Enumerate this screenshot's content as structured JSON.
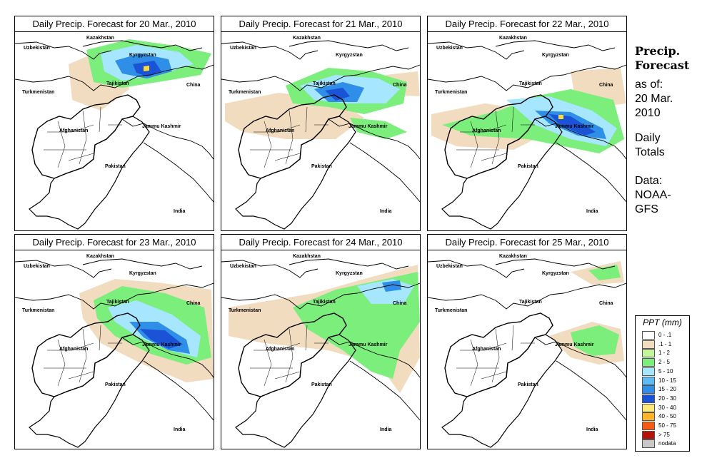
{
  "panels": [
    {
      "title": "Daily Precip. Forecast for  20 Mar., 2010",
      "precip": [
        {
          "c": "#f1dcc0",
          "pts": [
            [
              75,
              45
            ],
            [
              110,
              30
            ],
            [
              150,
              40
            ],
            [
              160,
              80
            ],
            [
              120,
              110
            ],
            [
              80,
              95
            ]
          ]
        },
        {
          "c": "#7bee7b",
          "pts": [
            [
              100,
              25
            ],
            [
              160,
              10
            ],
            [
              230,
              20
            ],
            [
              275,
              30
            ],
            [
              260,
              60
            ],
            [
              200,
              70
            ],
            [
              150,
              78
            ],
            [
              110,
              70
            ]
          ]
        },
        {
          "c": "#a6e7ff",
          "pts": [
            [
              120,
              30
            ],
            [
              170,
              18
            ],
            [
              230,
              28
            ],
            [
              250,
              45
            ],
            [
              200,
              60
            ],
            [
              150,
              68
            ],
            [
              125,
              55
            ]
          ]
        },
        {
          "c": "#2f8fe8",
          "pts": [
            [
              140,
              40
            ],
            [
              175,
              30
            ],
            [
              215,
              38
            ],
            [
              220,
              55
            ],
            [
              185,
              65
            ],
            [
              150,
              58
            ]
          ]
        },
        {
          "c": "#1a53d6",
          "pts": [
            [
              165,
              45
            ],
            [
              195,
              40
            ],
            [
              205,
              55
            ],
            [
              185,
              62
            ],
            [
              170,
              57
            ]
          ]
        },
        {
          "c": "#ffd93a",
          "pts": [
            [
              180,
              48
            ],
            [
              188,
              47
            ],
            [
              188,
              54
            ],
            [
              180,
              55
            ]
          ]
        }
      ]
    },
    {
      "title": "Daily Precip. Forecast for  21 Mar., 2010",
      "precip": [
        {
          "c": "#f1dcc0",
          "pts": [
            [
              5,
              100
            ],
            [
              80,
              85
            ],
            [
              160,
              95
            ],
            [
              200,
              120
            ],
            [
              160,
              150
            ],
            [
              90,
              150
            ],
            [
              30,
              140
            ],
            [
              5,
              125
            ]
          ]
        },
        {
          "c": "#f1dcc0",
          "pts": [
            [
              230,
              60
            ],
            [
              275,
              55
            ],
            [
              278,
              90
            ],
            [
              240,
              88
            ]
          ]
        },
        {
          "c": "#7bee7b",
          "pts": [
            [
              90,
              75
            ],
            [
              150,
              50
            ],
            [
              210,
              55
            ],
            [
              260,
              70
            ],
            [
              255,
              100
            ],
            [
              200,
              115
            ],
            [
              150,
              105
            ],
            [
              100,
              100
            ]
          ]
        },
        {
          "c": "#a6e7ff",
          "pts": [
            [
              110,
              75
            ],
            [
              160,
              60
            ],
            [
              220,
              65
            ],
            [
              250,
              80
            ],
            [
              230,
              100
            ],
            [
              175,
              100
            ],
            [
              130,
              95
            ]
          ]
        },
        {
          "c": "#2f8fe8",
          "pts": [
            [
              130,
              80
            ],
            [
              170,
              70
            ],
            [
              200,
              78
            ],
            [
              190,
              98
            ],
            [
              150,
              98
            ]
          ]
        },
        {
          "c": "#1a53d6",
          "pts": [
            [
              145,
              82
            ],
            [
              170,
              78
            ],
            [
              180,
              90
            ],
            [
              160,
              96
            ]
          ]
        },
        {
          "c": "#7bee7b",
          "pts": [
            [
              180,
              120
            ],
            [
              230,
              125
            ],
            [
              260,
              140
            ],
            [
              230,
              150
            ],
            [
              190,
              140
            ]
          ]
        }
      ]
    },
    {
      "title": "Daily Precip. Forecast for  22 Mar., 2010",
      "precip": [
        {
          "c": "#f1dcc0",
          "pts": [
            [
              5,
              115
            ],
            [
              80,
              100
            ],
            [
              150,
              110
            ],
            [
              170,
              140
            ],
            [
              120,
              165
            ],
            [
              40,
              160
            ],
            [
              5,
              145
            ]
          ]
        },
        {
          "c": "#f1dcc0",
          "pts": [
            [
              200,
              55
            ],
            [
              270,
              50
            ],
            [
              278,
              100
            ],
            [
              240,
              105
            ],
            [
              205,
              85
            ]
          ]
        },
        {
          "c": "#7bee7b",
          "pts": [
            [
              20,
              130
            ],
            [
              100,
              110
            ],
            [
              150,
              90
            ],
            [
              200,
              80
            ],
            [
              260,
              95
            ],
            [
              275,
              150
            ],
            [
              240,
              170
            ],
            [
              190,
              160
            ],
            [
              140,
              150
            ],
            [
              60,
              145
            ]
          ]
        },
        {
          "c": "#a6e7ff",
          "pts": [
            [
              110,
              95
            ],
            [
              170,
              90
            ],
            [
              230,
              110
            ],
            [
              265,
              135
            ],
            [
              250,
              160
            ],
            [
              200,
              150
            ],
            [
              150,
              130
            ]
          ]
        },
        {
          "c": "#2f8fe8",
          "pts": [
            [
              150,
              110
            ],
            [
              200,
              112
            ],
            [
              245,
              135
            ],
            [
              250,
              150
            ],
            [
              210,
              145
            ],
            [
              170,
              128
            ]
          ]
        },
        {
          "c": "#1a53d6",
          "pts": [
            [
              170,
              115
            ],
            [
              200,
              118
            ],
            [
              235,
              140
            ],
            [
              220,
              145
            ],
            [
              185,
              130
            ]
          ]
        },
        {
          "c": "#ffd93a",
          "pts": [
            [
              183,
              116
            ],
            [
              190,
              116
            ],
            [
              190,
              122
            ],
            [
              183,
              122
            ]
          ]
        }
      ]
    },
    {
      "title": "Daily Precip. Forecast for  23 Mar., 2010",
      "precip": [
        {
          "c": "#f1dcc0",
          "pts": [
            [
              90,
              60
            ],
            [
              140,
              40
            ],
            [
              200,
              45
            ],
            [
              275,
              55
            ],
            [
              278,
              180
            ],
            [
              240,
              185
            ],
            [
              180,
              160
            ],
            [
              120,
              130
            ],
            [
              95,
              95
            ]
          ]
        },
        {
          "c": "#7bee7b",
          "pts": [
            [
              110,
              70
            ],
            [
              150,
              50
            ],
            [
              210,
              60
            ],
            [
              265,
              80
            ],
            [
              275,
              150
            ],
            [
              240,
              160
            ],
            [
              190,
              145
            ],
            [
              140,
              120
            ],
            [
              115,
              95
            ]
          ]
        },
        {
          "c": "#a6e7ff",
          "pts": [
            [
              130,
              80
            ],
            [
              170,
              70
            ],
            [
              220,
              90
            ],
            [
              260,
              120
            ],
            [
              255,
              150
            ],
            [
              215,
              140
            ],
            [
              170,
              120
            ],
            [
              140,
              100
            ]
          ]
        },
        {
          "c": "#2f8fe8",
          "pts": [
            [
              160,
              100
            ],
            [
              200,
              100
            ],
            [
              240,
              125
            ],
            [
              245,
              145
            ],
            [
              215,
              140
            ],
            [
              180,
              122
            ]
          ]
        },
        {
          "c": "#1a53d6",
          "pts": [
            [
              175,
              110
            ],
            [
              210,
              112
            ],
            [
              235,
              132
            ],
            [
              215,
              138
            ],
            [
              190,
              125
            ]
          ]
        }
      ]
    },
    {
      "title": "Daily Precip. Forecast for  24 Mar., 2010",
      "precip": [
        {
          "c": "#f1dcc0",
          "pts": [
            [
              10,
              80
            ],
            [
              70,
              70
            ],
            [
              130,
              60
            ],
            [
              200,
              40
            ],
            [
              275,
              20
            ],
            [
              278,
              150
            ],
            [
              250,
              200
            ],
            [
              220,
              160
            ],
            [
              150,
              140
            ],
            [
              60,
              130
            ],
            [
              10,
              120
            ]
          ]
        },
        {
          "c": "#7bee7b",
          "pts": [
            [
              100,
              80
            ],
            [
              160,
              55
            ],
            [
              230,
              40
            ],
            [
              275,
              30
            ],
            [
              278,
              100
            ],
            [
              250,
              140
            ],
            [
              240,
              180
            ],
            [
              210,
              170
            ],
            [
              170,
              140
            ],
            [
              120,
              110
            ]
          ]
        },
        {
          "c": "#a6e7ff",
          "pts": [
            [
              190,
              50
            ],
            [
              240,
              40
            ],
            [
              270,
              50
            ],
            [
              255,
              75
            ],
            [
              210,
              75
            ]
          ]
        },
        {
          "c": "#2f8fe8",
          "pts": [
            [
              225,
              45
            ],
            [
              250,
              42
            ],
            [
              252,
              55
            ],
            [
              230,
              58
            ]
          ]
        }
      ]
    },
    {
      "title": "Daily Precip. Forecast for  25 Mar., 2010",
      "precip": [
        {
          "c": "#f1dcc0",
          "pts": [
            [
              170,
              120
            ],
            [
              230,
              100
            ],
            [
              270,
              110
            ],
            [
              275,
              155
            ],
            [
              240,
              160
            ],
            [
              200,
              150
            ]
          ]
        },
        {
          "c": "#f1dcc0",
          "pts": [
            [
              200,
              30
            ],
            [
              270,
              15
            ],
            [
              275,
              45
            ],
            [
              230,
              48
            ]
          ]
        },
        {
          "c": "#7bee7b",
          "pts": [
            [
              200,
              115
            ],
            [
              240,
              105
            ],
            [
              268,
              118
            ],
            [
              262,
              145
            ],
            [
              230,
              148
            ],
            [
              205,
              135
            ]
          ]
        },
        {
          "c": "#7bee7b",
          "pts": [
            [
              225,
              28
            ],
            [
              265,
              20
            ],
            [
              270,
              38
            ],
            [
              240,
              42
            ]
          ]
        }
      ]
    }
  ],
  "map_labels": {
    "kazakhstan": "Kazakhstan",
    "uzbekistan": "Uzbekistan",
    "kyrgyzstan": "Kyrgyzstan",
    "tajikistan": "Tajikistan",
    "turkmenistan": "Turkmenistan",
    "china": "China",
    "afghanistan": "Afghanistan",
    "jammu_kashmir": "Jammu Kashmir",
    "pakistan": "Pakistan",
    "india": "India"
  },
  "sidebar": {
    "title_line1": "Precip.",
    "title_line2": "Forecast",
    "asof_line1": "as of:",
    "asof_line2": "20 Mar.",
    "asof_line3": "2010",
    "type_line1": "Daily",
    "type_line2": "Totals",
    "data_line1": "Data:",
    "data_line2": "NOAA-",
    "data_line3": "GFS"
  },
  "legend": {
    "title": "PPT (mm)",
    "items": [
      {
        "label": "0 - .1",
        "color": "#ffffff"
      },
      {
        "label": ".1 - 1",
        "color": "#f1dcc0"
      },
      {
        "label": "1 - 2",
        "color": "#c4f59a"
      },
      {
        "label": "2 - 5",
        "color": "#7bee7b"
      },
      {
        "label": "5 - 10",
        "color": "#a6e7ff"
      },
      {
        "label": "10 - 15",
        "color": "#5cbcf5"
      },
      {
        "label": "15 - 20",
        "color": "#2f8fe8"
      },
      {
        "label": "20 - 30",
        "color": "#1a53d6"
      },
      {
        "label": "30 - 40",
        "color": "#ffe978"
      },
      {
        "label": "40 - 50",
        "color": "#ffb42c"
      },
      {
        "label": "50 - 75",
        "color": "#f25c14"
      },
      {
        "label": "> 75",
        "color": "#b5120a"
      },
      {
        "label": "nodata",
        "color": "#c8c8c8"
      }
    ]
  }
}
